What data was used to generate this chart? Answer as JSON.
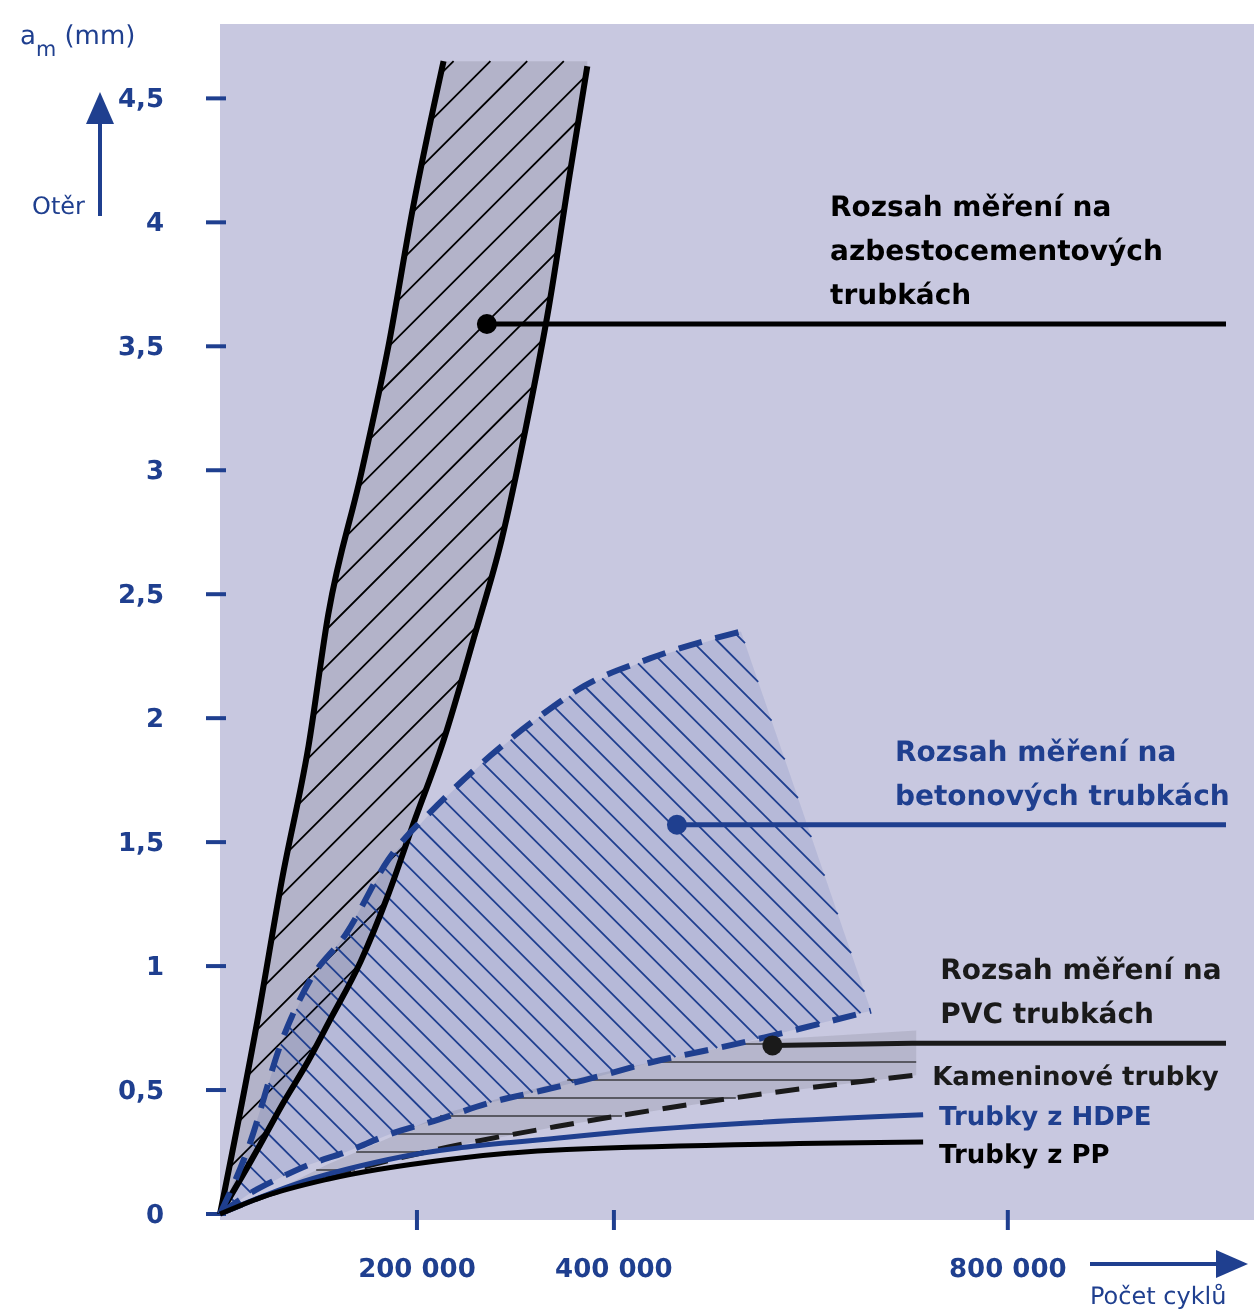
{
  "chart_data": {
    "type": "line",
    "ylabel": "a$_{m}$ (mm)",
    "xlabel": "Počet cyklů",
    "annotations": [
      {
        "text": "Rozsah měření na azbestocementových trubkách",
        "x": 271000,
        "y": 3.59
      },
      {
        "text": "Rozsah měření na betonových trubkách",
        "x": 464000,
        "y": 1.57
      },
      {
        "text": "Rozsah měření na PVC trubkách",
        "x": 561000,
        "y": 0.68
      },
      "Otěr"
    ],
    "xlim": [
      0,
      1050000
    ],
    "xticks": [
      {
        "value": 200000,
        "label": "200 000"
      },
      {
        "value": 400000,
        "label": "400 000"
      },
      {
        "value": 800000,
        "label": "800 000"
      }
    ],
    "ylim": [
      0,
      4.8
    ],
    "yticks": [
      0,
      {
        "value": 0.5,
        "label": "0,5"
      },
      1,
      {
        "value": 1.5,
        "label": "1,5"
      },
      2,
      {
        "value": 2.5,
        "label": "2,5"
      },
      3,
      {
        "value": 3.5,
        "label": "3,5"
      },
      4,
      {
        "value": 4.5,
        "label": "4,5"
      }
    ],
    "grid": false,
    "series": [
      {
        "color": "#000000",
        "line_style": "solid",
        "x": [
          0,
          38000,
          63000,
          90000,
          110000,
          143000,
          171000,
          196000,
          227000
        ],
        "values": [
          0,
          0.78,
          1.35,
          1.89,
          2.42,
          2.98,
          3.5,
          4.06,
          4.65
        ]
      },
      {
        "color": "#000000",
        "line_style": "solid",
        "x": [
          0,
          38000,
          63000,
          90000,
          110000,
          143000,
          171000,
          196000,
          227000,
          259000,
          286000,
          311000,
          334000,
          355000,
          373000
        ],
        "values": [
          0,
          0.26,
          0.44,
          0.62,
          0.77,
          1.02,
          1.29,
          1.57,
          1.91,
          2.34,
          2.72,
          3.18,
          3.66,
          4.19,
          4.63
        ],
        "lower": [
          0,
          0.26,
          0.44,
          0.62,
          0.77,
          1.02,
          1.29,
          1.57,
          1.91,
          2.34,
          2.72,
          3.18,
          3.66,
          4.19,
          4.63
        ],
        "upper": [
          0,
          0.78,
          1.35,
          1.89,
          2.42,
          2.98,
          3.5,
          4.06,
          4.65,
          4.65,
          4.65,
          4.65,
          4.65,
          4.65,
          4.65
        ]
      },
      {
        "color": "#1f3f8f",
        "line_style": "dashed",
        "x": [
          0,
          29000,
          63000,
          91000,
          128000,
          171000,
          221000,
          275000,
          329000,
          370000,
          436000,
          529000
        ],
        "values": [
          0,
          0.27,
          0.7,
          0.94,
          1.13,
          1.43,
          1.65,
          1.85,
          2.02,
          2.13,
          2.24,
          2.35
        ]
      },
      {
        "color": "#1f3f8f",
        "line_style": "dashed",
        "x": [
          0,
          29000,
          63000,
          91000,
          128000,
          171000,
          221000,
          275000,
          329000,
          370000,
          436000,
          529000,
          661000
        ],
        "values": [
          0,
          0.08,
          0.15,
          0.2,
          0.25,
          0.32,
          0.38,
          0.45,
          0.5,
          0.54,
          0.61,
          0.69,
          0.82
        ],
        "lower": [
          0,
          0.08,
          0.15,
          0.2,
          0.25,
          0.32,
          0.38,
          0.45,
          0.5,
          0.54,
          0.61,
          0.69,
          0.82
        ],
        "upper": [
          0,
          0.27,
          0.7,
          0.94,
          1.13,
          1.43,
          1.65,
          1.85,
          2.02,
          2.13,
          2.24,
          2.35,
          0.82
        ]
      },
      {
        "name": "Kameninové trubky",
        "color": "#1a1a1a",
        "line_style": "dashed",
        "x": [
          0,
          44000,
          109000,
          232000,
          352000,
          543000,
          707000
        ],
        "values": [
          0,
          0.07,
          0.15,
          0.27,
          0.36,
          0.48,
          0.56
        ],
        "lower": [
          0,
          0.07,
          0.15,
          0.27,
          0.36,
          0.48,
          0.56
        ],
        "upper": [
          0,
          0.07,
          0.2,
          0.41,
          0.54,
          0.7,
          0.74
        ]
      },
      {
        "name": "Trubky z HDPE",
        "color": "#1f3f8f",
        "line_style": "solid",
        "x": [
          0,
          76000,
          171000,
          352000,
          714000
        ],
        "values": [
          0,
          0.12,
          0.22,
          0.31,
          0.4
        ]
      },
      {
        "name": "Trubky z PP",
        "color": "#000000",
        "line_style": "solid",
        "x": [
          0,
          44000,
          109000,
          232000,
          352000,
          714000
        ],
        "values": [
          0,
          0.07,
          0.14,
          0.22,
          0.26,
          0.29
        ]
      }
    ]
  }
}
